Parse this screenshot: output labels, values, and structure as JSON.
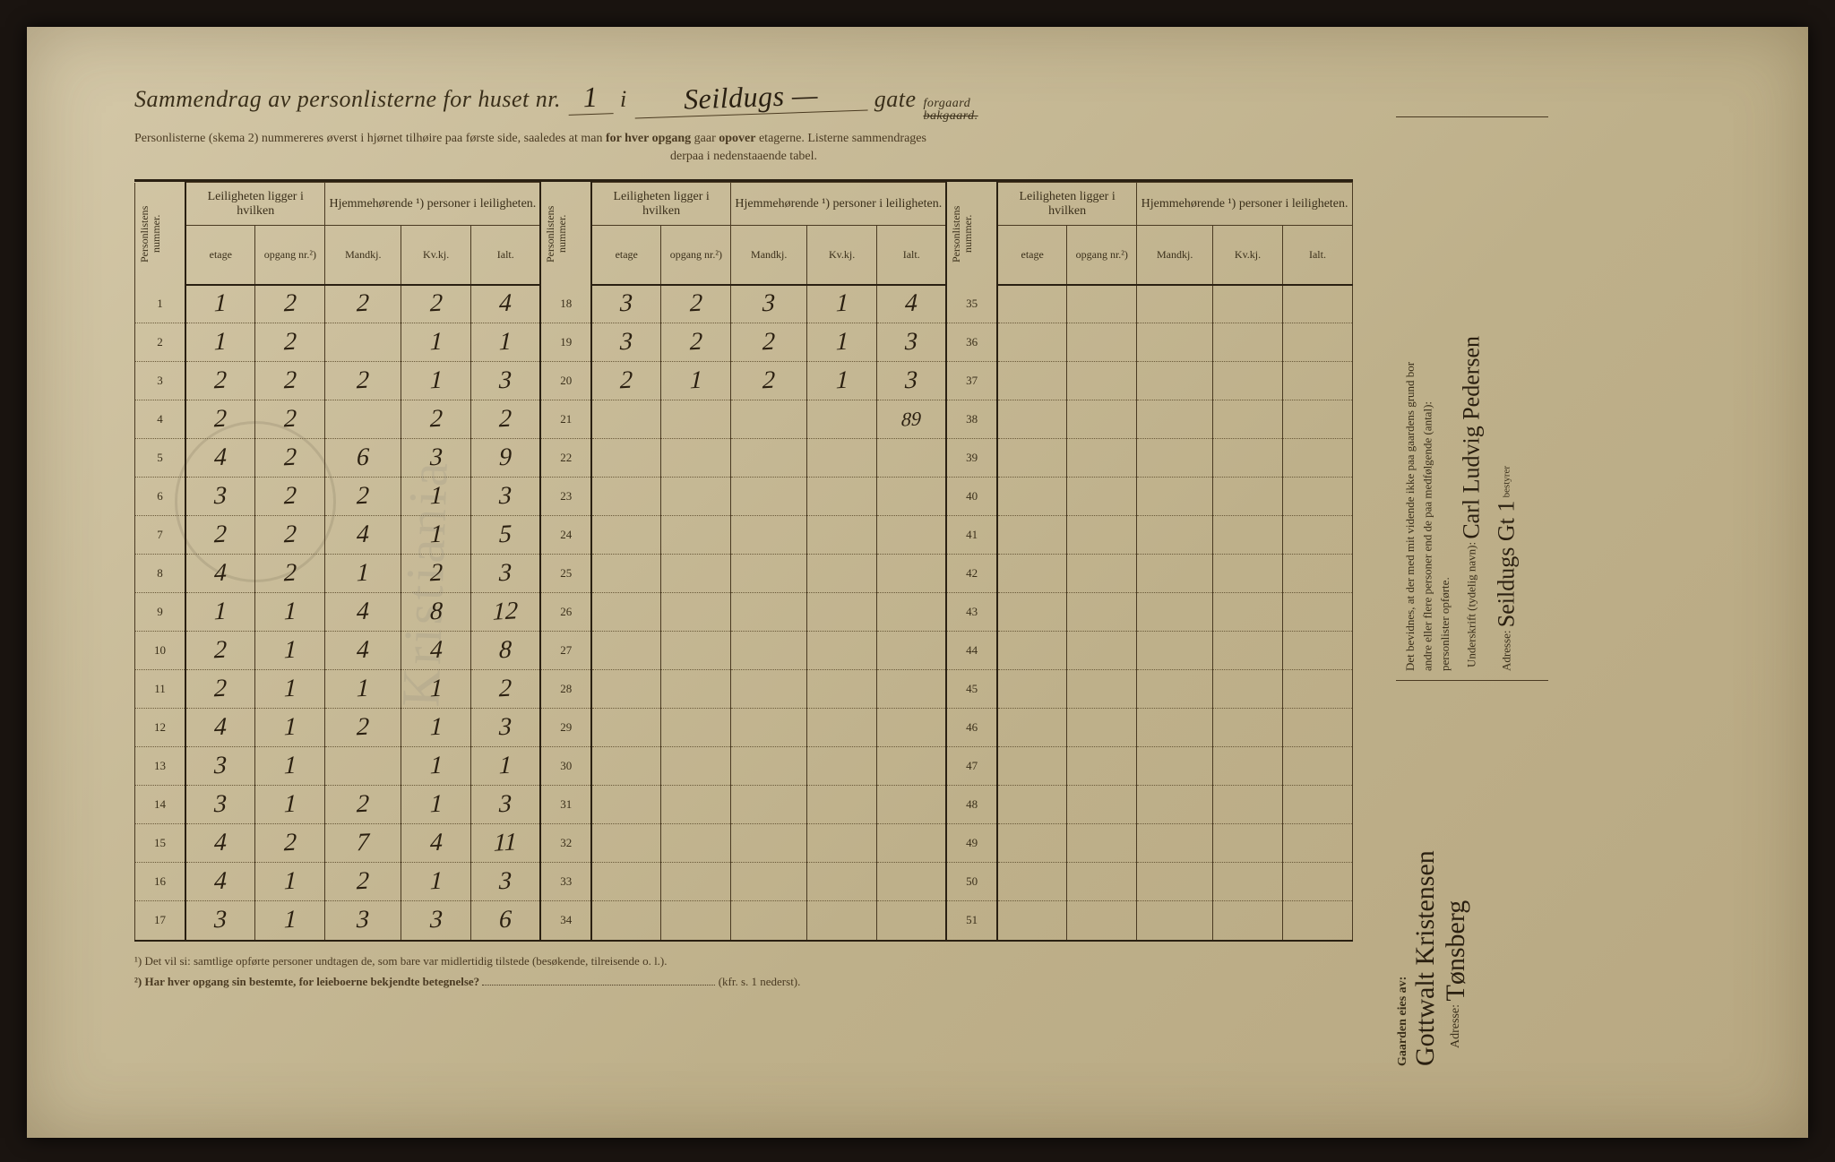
{
  "header": {
    "title_prefix": "Sammendrag av personlisterne for huset nr.",
    "house_nr": "1",
    "i": "i",
    "street": "Seildugs —",
    "gate": "gate",
    "forgaard": "forgaard",
    "bakgaard": "bakgaard.",
    "instr1": "Personlisterne (skema 2) nummereres øverst i hjørnet tilhøire paa første side, saaledes at man",
    "instr1b": "for hver opgang",
    "instr1c": "gaar",
    "instr1d": "opover",
    "instr1e": "etagerne.   Listerne sammendrages",
    "instr2": "derpaa i nedenstaaende tabel."
  },
  "columns": {
    "personlistens_nummer": "Personlistens nummer.",
    "leiligheten": "Leiligheten ligger i hvilken",
    "hjemme": "Hjemmehørende ¹) personer i leiligheten.",
    "etage": "etage",
    "opgang": "opgang nr.²)",
    "mandkj": "Mandkj.",
    "kvkj": "Kv.kj.",
    "ialt": "Ialt."
  },
  "rows1": [
    {
      "n": "1",
      "e": "1",
      "o": "2",
      "m": "2",
      "k": "2",
      "i": "4"
    },
    {
      "n": "2",
      "e": "1",
      "o": "2",
      "m": "",
      "k": "1",
      "i": "1"
    },
    {
      "n": "3",
      "e": "2",
      "o": "2",
      "m": "2",
      "k": "1",
      "i": "3"
    },
    {
      "n": "4",
      "e": "2",
      "o": "2",
      "m": "",
      "k": "2",
      "i": "2"
    },
    {
      "n": "5",
      "e": "4",
      "o": "2",
      "m": "6",
      "k": "3",
      "i": "9"
    },
    {
      "n": "6",
      "e": "3",
      "o": "2",
      "m": "2",
      "k": "1",
      "i": "3"
    },
    {
      "n": "7",
      "e": "2",
      "o": "2",
      "m": "4",
      "k": "1",
      "i": "5"
    },
    {
      "n": "8",
      "e": "4",
      "o": "2",
      "m": "1",
      "k": "2",
      "i": "3"
    },
    {
      "n": "9",
      "e": "1",
      "o": "1",
      "m": "4",
      "k": "8",
      "i": "12"
    },
    {
      "n": "10",
      "e": "2",
      "o": "1",
      "m": "4",
      "k": "4",
      "i": "8"
    },
    {
      "n": "11",
      "e": "2",
      "o": "1",
      "m": "1",
      "k": "1",
      "i": "2"
    },
    {
      "n": "12",
      "e": "4",
      "o": "1",
      "m": "2",
      "k": "1",
      "i": "3"
    },
    {
      "n": "13",
      "e": "3",
      "o": "1",
      "m": "",
      "k": "1",
      "i": "1"
    },
    {
      "n": "14",
      "e": "3",
      "o": "1",
      "m": "2",
      "k": "1",
      "i": "3"
    },
    {
      "n": "15",
      "e": "4",
      "o": "2",
      "m": "7",
      "k": "4",
      "i": "11"
    },
    {
      "n": "16",
      "e": "4",
      "o": "1",
      "m": "2",
      "k": "1",
      "i": "3"
    },
    {
      "n": "17",
      "e": "3",
      "o": "1",
      "m": "3",
      "k": "3",
      "i": "6"
    }
  ],
  "rows2": [
    {
      "n": "18",
      "e": "3",
      "o": "2",
      "m": "3",
      "k": "1",
      "i": "4"
    },
    {
      "n": "19",
      "e": "3",
      "o": "2",
      "m": "2",
      "k": "1",
      "i": "3"
    },
    {
      "n": "20",
      "e": "2",
      "o": "1",
      "m": "2",
      "k": "1",
      "i": "3"
    },
    {
      "n": "21",
      "e": "",
      "o": "",
      "m": "",
      "k": "",
      "i": "89"
    },
    {
      "n": "22"
    },
    {
      "n": "23"
    },
    {
      "n": "24"
    },
    {
      "n": "25"
    },
    {
      "n": "26"
    },
    {
      "n": "27"
    },
    {
      "n": "28"
    },
    {
      "n": "29"
    },
    {
      "n": "30"
    },
    {
      "n": "31"
    },
    {
      "n": "32"
    },
    {
      "n": "33"
    },
    {
      "n": "34"
    }
  ],
  "rows3": [
    {
      "n": "35"
    },
    {
      "n": "36"
    },
    {
      "n": "37"
    },
    {
      "n": "38"
    },
    {
      "n": "39"
    },
    {
      "n": "40"
    },
    {
      "n": "41"
    },
    {
      "n": "42"
    },
    {
      "n": "43"
    },
    {
      "n": "44"
    },
    {
      "n": "45"
    },
    {
      "n": "46"
    },
    {
      "n": "47"
    },
    {
      "n": "48"
    },
    {
      "n": "49"
    },
    {
      "n": "50"
    },
    {
      "n": "51"
    }
  ],
  "footnotes": {
    "f1": "¹)   Det vil si: samtlige opførte personer undtagen de, som bare var midlertidig tilstede (besøkende, tilreisende o. l.).",
    "f2a": "²)   Har hver opgang sin bestemte, for leieboerne bekjendte betegnelse?",
    "f2b": "(kfr. s. 1 nederst)."
  },
  "side": {
    "stmt1": "Det bevidnes, at der med mit vidende ikke paa gaardens grund bor",
    "stmt2": "andre eller flere personer end de paa medfølgende (antal):",
    "stmt3": "personlister opførte.",
    "sign_label": "Underskrift (tydelig navn):",
    "signature": "Carl Ludvig Pedersen",
    "addr_label": "Adresse:",
    "address": "Seildugs Gt 1",
    "bestyr": "bestyrer"
  },
  "owner": {
    "label": "Gaarden eies av:",
    "name": "Gottwalt Kristensen",
    "addr_label": "Adresse:",
    "address": "Tønsberg"
  },
  "colors": {
    "paper": "#c8bb98",
    "ink": "#3a2f1a",
    "handwriting": "#2a1f10",
    "border": "#2a2012"
  }
}
